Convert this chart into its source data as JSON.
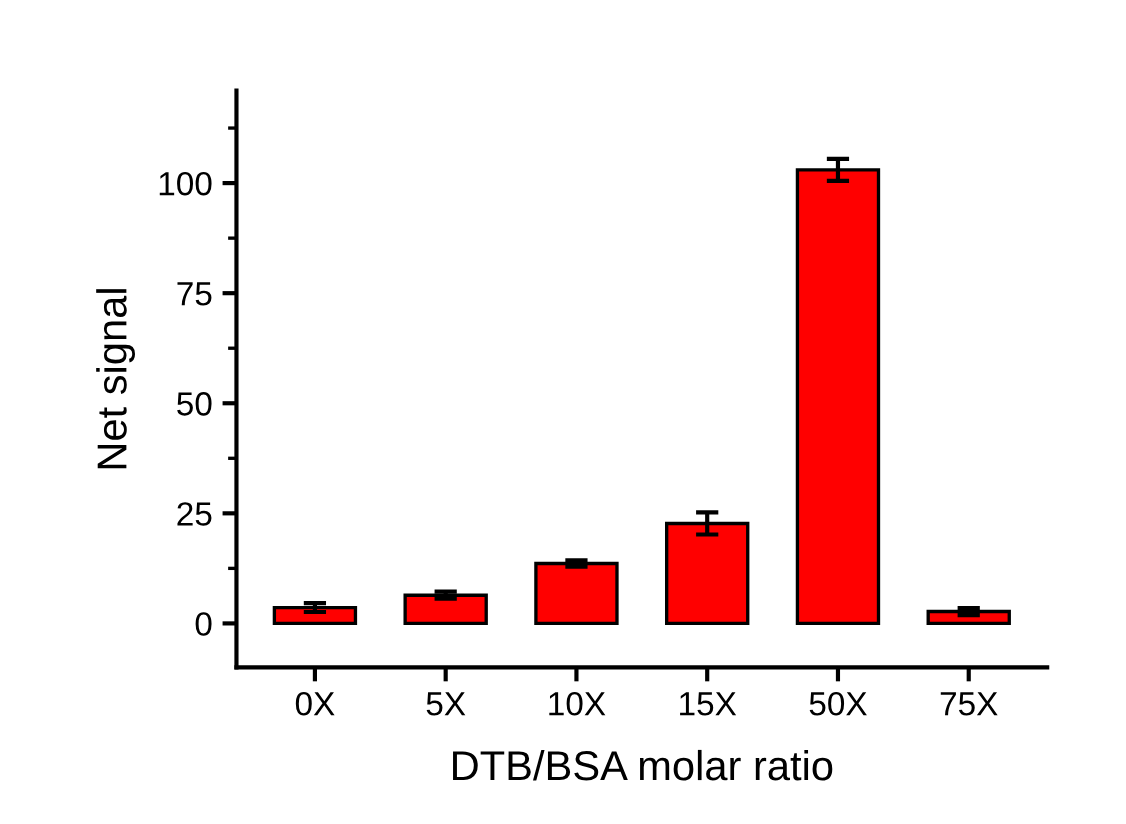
{
  "chart_data": {
    "type": "bar",
    "xlabel": "DTB/BSA molar ratio",
    "ylabel": "Net signal",
    "categories": [
      "0X",
      "5X",
      "10X",
      "15X",
      "50X",
      "75X"
    ],
    "values": [
      3.6,
      6.4,
      13.6,
      22.7,
      103,
      2.7
    ],
    "errors": [
      1,
      0.8,
      0.7,
      2.5,
      2.5,
      0.8
    ],
    "color": "#ff0000",
    "ylim": [
      -10,
      121
    ],
    "yticks": [
      0,
      25,
      50,
      75,
      100
    ],
    "grid": false
  }
}
